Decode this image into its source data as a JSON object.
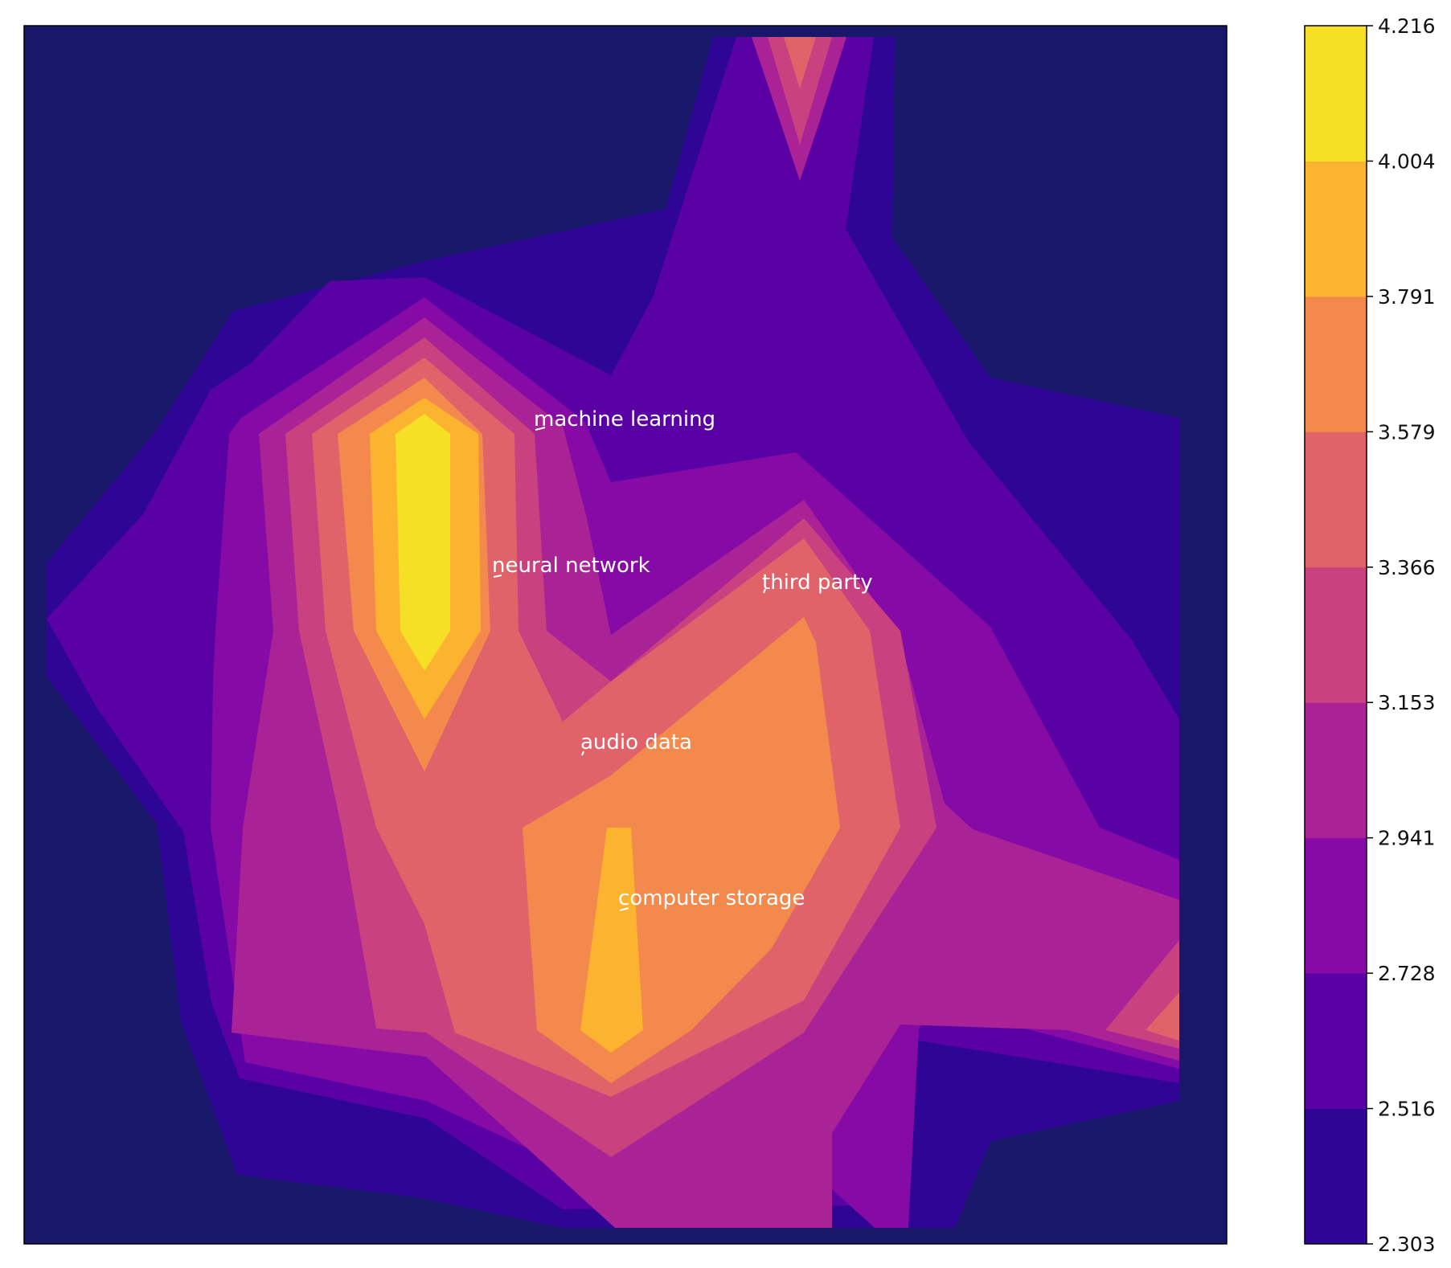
{
  "chart_data": {
    "type": "heatmap",
    "subtype": "filled-contour",
    "colormap": "plasma",
    "background_color": "#18176a",
    "colorbar": {
      "levels": [
        2.303,
        2.516,
        2.728,
        2.941,
        3.153,
        3.366,
        3.579,
        3.791,
        4.004,
        4.216
      ],
      "colors": [
        "#2e0595",
        "#5a01a5",
        "#860aa5",
        "#aa2396",
        "#c9417f",
        "#e1636a",
        "#f3894c",
        "#fcb330",
        "#f5e026"
      ],
      "tick_labels": [
        "2.303",
        "2.516",
        "2.728",
        "2.941",
        "3.153",
        "3.366",
        "3.579",
        "3.791",
        "4.004",
        "4.216"
      ],
      "placement": "right"
    },
    "annotations": [
      {
        "text": "machine learning"
      },
      {
        "text": "neural network"
      },
      {
        "text": "third party"
      },
      {
        "text": "audio data"
      },
      {
        "text": "computer storage"
      }
    ],
    "xlabel": "",
    "ylabel": "",
    "title": "",
    "grid": false,
    "axis_ticks": false
  }
}
